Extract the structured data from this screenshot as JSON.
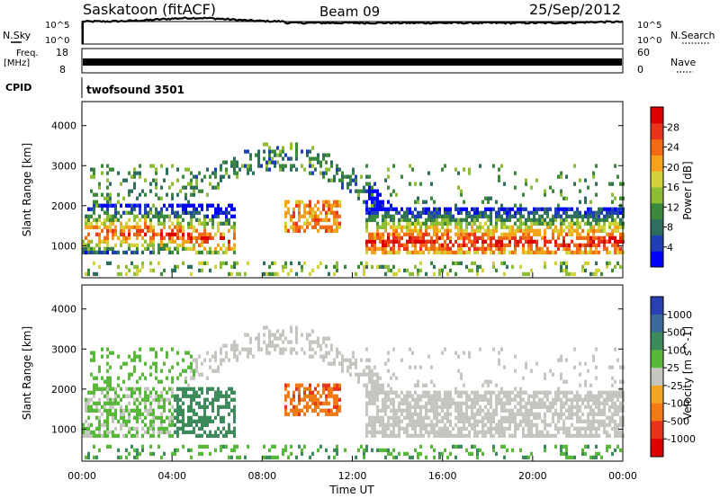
{
  "header": {
    "station": "Saskatoon (fitACF)",
    "beam": "Beam 09",
    "date": "25/Sep/2012"
  },
  "nsky": {
    "label": "N.Sky",
    "tick_top": "10^5",
    "tick_bottom": "10^0",
    "right_label": "N.Search",
    "right_tick_top": "10^5",
    "right_tick_bottom": "10^0"
  },
  "freq": {
    "label_line1": "Freq.",
    "label_line2": "[MHz]",
    "tick_top": "18",
    "tick_bottom": "8",
    "right_label": "Nave",
    "right_tick_top": "60",
    "right_tick_bottom": "0"
  },
  "cpid": {
    "label": "CPID",
    "value": "twofsound 3501"
  },
  "chart_data": [
    {
      "type": "heatmap",
      "panel": "power",
      "ylabel": "Slant Range [km]",
      "ylim": [
        200,
        4600
      ],
      "yticks": [
        "1000",
        "2000",
        "3000",
        "4000"
      ],
      "xlim": [
        "00:00",
        "24:00"
      ],
      "colorbar_label": "Power [dB]",
      "colorbar_ticks": [
        "4",
        "8",
        "12",
        "16",
        "20",
        "24",
        "28"
      ],
      "colorbar_range": [
        0,
        30
      ],
      "colors": [
        "#0000ff",
        "#1f3fb5",
        "#2e6e5e",
        "#3b8a3b",
        "#8cbd34",
        "#d2d23a",
        "#f6a21a",
        "#f26a14",
        "#e8341a",
        "#dd0000"
      ]
    },
    {
      "type": "heatmap",
      "panel": "velocity",
      "ylabel": "Slant Range [km]",
      "ylim": [
        200,
        4600
      ],
      "yticks": [
        "1000",
        "2000",
        "3000",
        "4000"
      ],
      "xlim": [
        "00:00",
        "24:00"
      ],
      "xticks": [
        "00:00",
        "04:00",
        "08:00",
        "12:00",
        "16:00",
        "20:00",
        "00:00"
      ],
      "xlabel": "Time UT",
      "colorbar_label": "Velocity [m s^-1]",
      "colorbar_ticks": [
        "1000",
        "500",
        "100",
        "25",
        "-25",
        "-100",
        "-500",
        "-1000"
      ],
      "colors": [
        "#2a3fb0",
        "#3a6a9a",
        "#3d8a5a",
        "#57b83a",
        "#c6c6c0",
        "#f4a524",
        "#f27a14",
        "#e8341a",
        "#dd0000"
      ]
    }
  ]
}
